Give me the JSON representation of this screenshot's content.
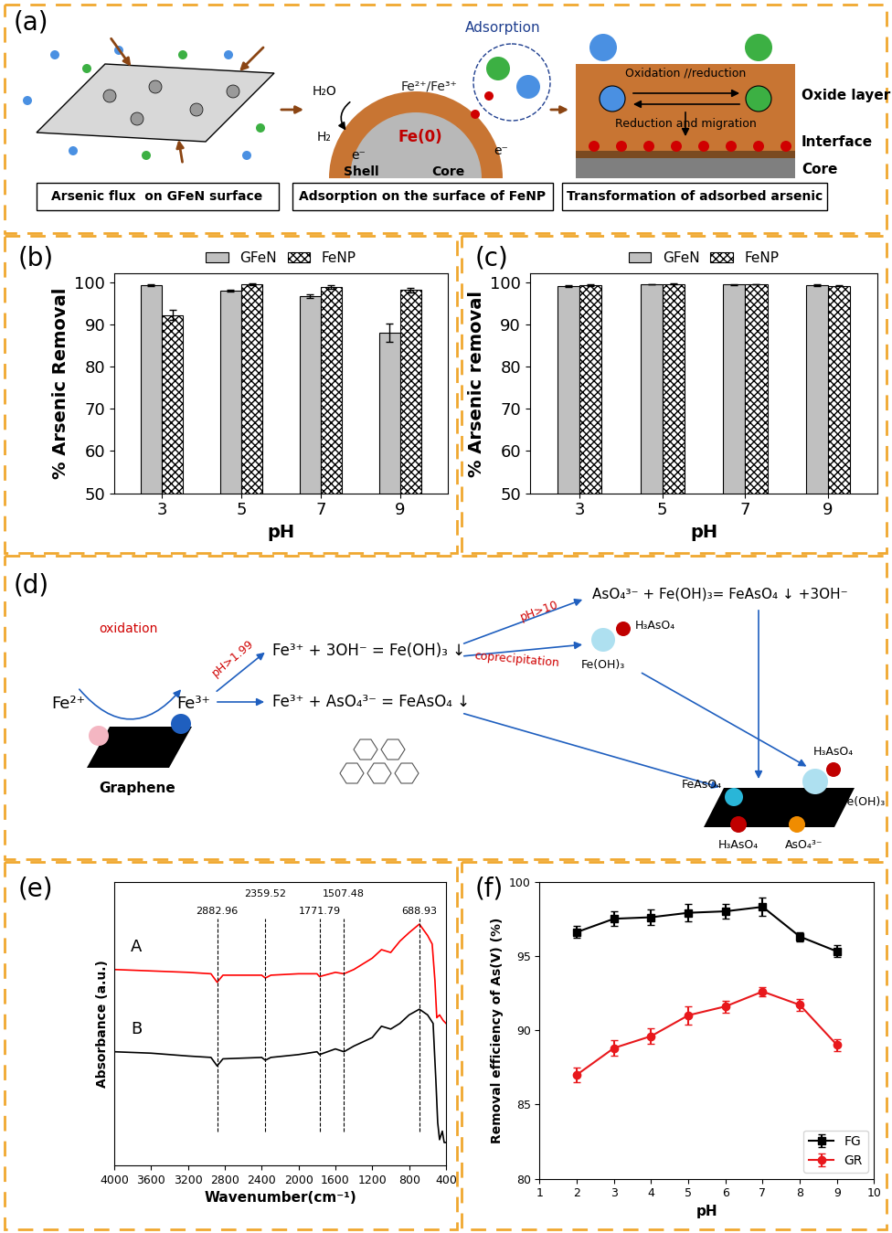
{
  "diagram_a": {
    "label": "(a)",
    "flux_caption": "Arsenic flux  on GFeN surface",
    "adsorption_caption": "Adsorption on the surface of FeNP",
    "transformation_caption": "Transformation of adsorbed arsenic",
    "adsorption": "Adsorption",
    "water": "H₂O",
    "hydrogen": "H₂",
    "electron": "e⁻",
    "iron_ions": "Fe²⁺/Fe³⁺",
    "iron": "Fe(0)",
    "shell": "Shell",
    "core": "Core",
    "redox": "Oxidation //reduction",
    "migration": "Reduction and migration",
    "oxide_layer": "Oxide layer",
    "interface": "Interface",
    "core_layer": "Core"
  },
  "diagram_d": {
    "label": "(d)",
    "oxidation": "oxidation",
    "fe2": "Fe²⁺",
    "fe3": "Fe³⁺",
    "graphene": "Graphene",
    "ph_low": "pH>1.99",
    "eq_hydroxide": "Fe³⁺ + 3OH⁻ = Fe(OH)₃ ↓",
    "eq_arsenate": "Fe³⁺ + AsO₄³⁻ = FeAsO₄ ↓",
    "ph_high": "pH>10",
    "eq_conversion": "AsO₄³⁻ + Fe(OH)₃= FeAsO₄ ↓ +3OH⁻",
    "coprecipitation": "coprecipitation",
    "arsenic_acid": "H₃AsO₄",
    "ferric_hydroxide": "Fe(OH)₃",
    "ferric_arsenate": "FeAsO₄",
    "arsenate": "AsO₄³⁻"
  },
  "chart_data": [
    {
      "type": "bar",
      "title": "(b)",
      "x_label": "pH",
      "y_label": "% Arsenic Removal",
      "categories": [
        "3",
        "5",
        "7",
        "9"
      ],
      "ylim": [
        50,
        102
      ],
      "yticks": [
        50,
        60,
        70,
        80,
        90,
        100
      ],
      "legend": "upper center",
      "series": [
        {
          "name": "GFeN",
          "color": "#c0c0c0",
          "values": [
            99.3,
            98.0,
            96.7,
            88.1
          ],
          "errors": [
            0.2,
            0.2,
            0.5,
            2.2
          ]
        },
        {
          "name": "FeNP",
          "color": "#ffffff",
          "values": [
            92.2,
            99.5,
            98.9,
            98.1
          ],
          "errors": [
            1.2,
            0.2,
            0.4,
            0.6
          ]
        }
      ]
    },
    {
      "type": "bar",
      "title": "(c)",
      "x_label": "pH",
      "y_label": "% Arsenic removal",
      "categories": [
        "3",
        "5",
        "7",
        "9"
      ],
      "ylim": [
        50,
        102
      ],
      "yticks": [
        50,
        60,
        70,
        80,
        90,
        100
      ],
      "legend": "upper center",
      "series": [
        {
          "name": "GFeN",
          "color": "#c0c0c0",
          "values": [
            99.0,
            99.5,
            99.4,
            99.2
          ],
          "errors": [
            0.2,
            0.1,
            0.1,
            0.2
          ]
        },
        {
          "name": "FeNP",
          "color": "#ffffff",
          "values": [
            99.3,
            99.6,
            99.5,
            99.1
          ],
          "errors": [
            0.2,
            0.1,
            0.1,
            0.1
          ]
        }
      ]
    },
    {
      "type": "line",
      "title": "(e)",
      "x_label": "Wavenumber(cm⁻¹)",
      "y_label": "Absorbance (a.u.)",
      "xlim": [
        4000,
        400
      ],
      "xticks": [
        4000,
        3600,
        3200,
        2800,
        2400,
        2000,
        1600,
        1200,
        800,
        400
      ],
      "ylim": [
        0,
        10
      ],
      "tick_labels": "x",
      "annotations": [
        2882.96,
        2359.52,
        1771.79,
        1507.48,
        688.93
      ],
      "series": [
        {
          "name": "A",
          "color": "#ff0000",
          "x": [
            4000,
            3600,
            3200,
            2950,
            2883,
            2820,
            2400,
            2360,
            2300,
            2000,
            1800,
            1772,
            1600,
            1507,
            1400,
            1200,
            1100,
            1000,
            900,
            800,
            689,
            600,
            550,
            520,
            500,
            470,
            430,
            400
          ],
          "values": [
            6.9,
            6.85,
            6.8,
            6.75,
            6.45,
            6.7,
            6.7,
            6.6,
            6.7,
            6.75,
            6.75,
            6.65,
            6.8,
            6.75,
            6.9,
            7.3,
            7.6,
            7.5,
            7.9,
            8.2,
            8.5,
            8.1,
            7.8,
            6.5,
            5.2,
            5.3,
            5.1,
            5.0
          ]
        },
        {
          "name": "B",
          "color": "#000000",
          "x": [
            4000,
            3600,
            3200,
            2950,
            2883,
            2820,
            2400,
            2360,
            2300,
            2000,
            1800,
            1772,
            1600,
            1507,
            1400,
            1200,
            1100,
            1000,
            900,
            800,
            689,
            600,
            540,
            510,
            490,
            470,
            440,
            420,
            400
          ],
          "values": [
            4.0,
            3.95,
            3.85,
            3.8,
            3.5,
            3.75,
            3.8,
            3.7,
            3.8,
            3.9,
            4.0,
            3.9,
            4.1,
            4.0,
            4.2,
            4.5,
            4.9,
            4.8,
            5.0,
            5.3,
            5.5,
            5.3,
            5.0,
            3.0,
            1.5,
            0.9,
            1.2,
            0.8,
            0.8
          ]
        }
      ]
    },
    {
      "type": "line",
      "title": "(f)",
      "x_label": "pH",
      "y_label": "Removal efficiency of As(V) (%)",
      "x": [
        2,
        3,
        4,
        5,
        6,
        7,
        8,
        9
      ],
      "xlim": [
        1,
        10
      ],
      "xticks": [
        1,
        2,
        3,
        4,
        5,
        6,
        7,
        8,
        9,
        10
      ],
      "ylim": [
        80,
        100
      ],
      "yticks": [
        80,
        85,
        90,
        95,
        100
      ],
      "legend": "lower right",
      "series": [
        {
          "name": "FG",
          "color": "#000000",
          "marker": "square",
          "values": [
            96.6,
            97.5,
            97.6,
            97.9,
            98.0,
            98.3,
            96.3,
            95.3
          ],
          "errors": [
            0.4,
            0.5,
            0.5,
            0.6,
            0.5,
            0.6,
            0.3,
            0.4
          ]
        },
        {
          "name": "GR",
          "color": "#e8181c",
          "marker": "circle",
          "values": [
            87.0,
            88.8,
            89.6,
            91.0,
            91.6,
            92.6,
            91.7,
            89.0
          ],
          "errors": [
            0.5,
            0.5,
            0.5,
            0.6,
            0.4,
            0.3,
            0.4,
            0.4
          ]
        }
      ]
    }
  ]
}
